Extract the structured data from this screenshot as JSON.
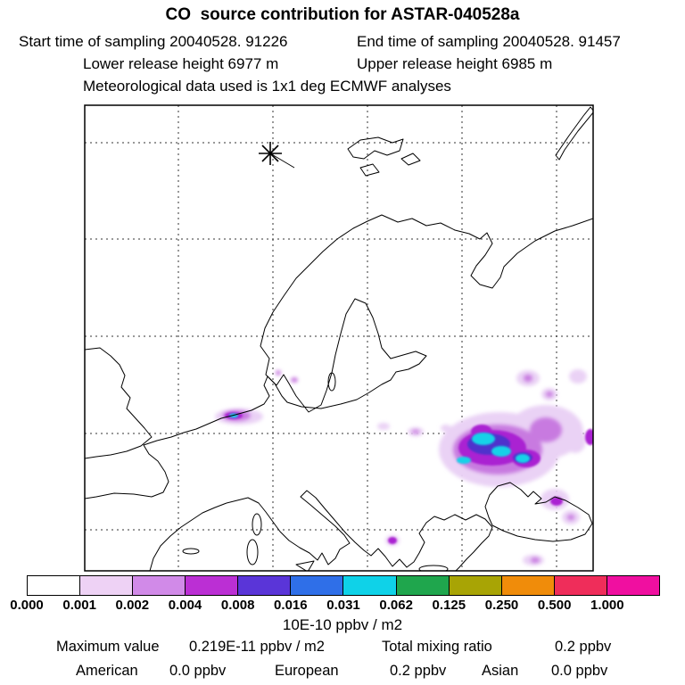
{
  "header": {
    "title": "CO  source contribution for ASTAR-040528a",
    "start_time": "Start time of sampling 20040528. 91226",
    "end_time": "End time of sampling 20040528. 91457",
    "lower_release": "Lower release height 6977 m",
    "upper_release": "Upper release height 6985 m",
    "met_data": "Meteorological data used is 1x1 deg ECMWF analyses"
  },
  "chart_data": {
    "type": "heatmap",
    "title": "CO source contribution for ASTAR-040528a",
    "description": "Geographic source-contribution footprint map over Europe and western Russia with logarithmic color-filled contours",
    "map": {
      "region": "Europe / Scandinavia / western Russia / Black Sea",
      "graticule": {
        "style": "dashed",
        "vertical_lines": 5,
        "horizontal_lines": 5
      },
      "release_marker": {
        "symbol": "asterisk",
        "location": "upper-left of map (Arctic / Svalbard region)"
      }
    },
    "colorbar": {
      "tick_labels": [
        "0.000",
        "0.001",
        "0.002",
        "0.004",
        "0.008",
        "0.016",
        "0.031",
        "0.062",
        "0.125",
        "0.250",
        "0.500",
        "1.000"
      ],
      "segment_colors": [
        "#ffffff",
        "#eed2f5",
        "#d18ae8",
        "#bb2fd4",
        "#5a35d8",
        "#2f6fe8",
        "#0fd2e8",
        "#1fa64d",
        "#a8a405",
        "#f08c0a",
        "#ef2d5a",
        "#f00fa0"
      ],
      "units": "10E-10 ppbv / m2",
      "scale": "logarithmic, factor-2 bins from 0.001 to 1.000"
    },
    "hotspots": [
      {
        "name": "eastern-europe-cluster",
        "approx_location": "Belarus / western Russia / northern Ukraine",
        "intensity": "peak, cyan cores (~0.008-0.016)",
        "extent": "large"
      },
      {
        "name": "benelux-streak",
        "approx_location": "Netherlands / northwest Germany",
        "intensity": "high, small cyan core",
        "extent": "small elongated"
      },
      {
        "name": "scattered-spots",
        "approx_location": "central Europe, Black Sea and southeastern Europe",
        "intensity": "low (0.001-0.004)",
        "extent": "small patches"
      }
    ],
    "stats": {
      "maximum_value": "0.219E-11 ppbv / m2",
      "total_mixing_ratio": "0.2 ppbv",
      "american": "0.0 ppbv",
      "european": "0.2 ppbv",
      "asian": "0.0 ppbv"
    }
  },
  "footer": {
    "maximum_label": "Maximum value",
    "maximum_value": "0.219E-11 ppbv / m2",
    "total_label": "Total mixing ratio",
    "total_value": "0.2 ppbv",
    "american_label": "American",
    "american_value": "0.0 ppbv",
    "european_label": "European",
    "european_value": "0.2 ppbv",
    "asian_label": "Asian",
    "asian_value": "0.0 ppbv"
  }
}
